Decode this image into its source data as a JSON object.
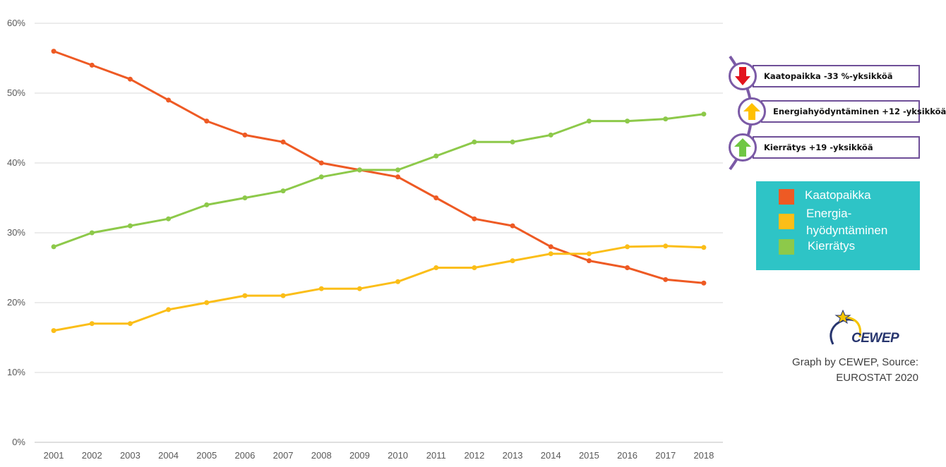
{
  "chart_data": {
    "type": "line",
    "x": [
      "2001",
      "2002",
      "2003",
      "2004",
      "2005",
      "2006",
      "2007",
      "2008",
      "2009",
      "2010",
      "2011",
      "2012",
      "2013",
      "2014",
      "2015",
      "2016",
      "2017",
      "2018"
    ],
    "ylim": [
      0,
      60
    ],
    "yticks": [
      "0%",
      "10%",
      "20%",
      "30%",
      "40%",
      "50%",
      "60%"
    ],
    "ytick_values": [
      0,
      10,
      20,
      30,
      40,
      50,
      60
    ],
    "grid": true,
    "legend_position": "right",
    "series": [
      {
        "name": "Kaatopaikka",
        "color": "#ee5a24",
        "values": [
          56,
          54,
          52,
          49,
          46,
          44,
          43,
          40,
          39,
          38,
          35,
          32,
          31,
          28,
          26,
          25,
          23.3,
          22.8
        ]
      },
      {
        "name": "Energia-hyödyntäminen",
        "color": "#fbbe18",
        "values": [
          16,
          17,
          17,
          19,
          20,
          21,
          21,
          22,
          22,
          23,
          25,
          25,
          26,
          27,
          27,
          28,
          28.1,
          27.9
        ]
      },
      {
        "name": "Kierrätys",
        "color": "#8dc94a",
        "values": [
          28,
          30,
          31,
          32,
          34,
          35,
          36,
          38,
          39,
          39,
          41,
          43,
          43,
          44,
          46,
          46,
          46.3,
          47
        ]
      }
    ]
  },
  "callouts": [
    {
      "text": "Kaatopaikka -33 %-yksikköä",
      "icon": "arrow-down-icon",
      "color": "#e3141e"
    },
    {
      "text": "Energiahyödyntäminen +12 -yksikköä",
      "icon": "arrow-up-icon",
      "color": "#ffc000"
    },
    {
      "text": "Kierrätys +19 -yksikköä",
      "icon": "arrow-up-icon",
      "color": "#70c744"
    }
  ],
  "legend": {
    "background": "#2ec4c6",
    "items": [
      {
        "label": "Kaatopaikka",
        "color": "#ee5a24"
      },
      {
        "label": "Energia-",
        "label2": "hyödyntäminen",
        "color": "#fbbe18"
      },
      {
        "label": "Kierrätys",
        "color": "#8dc94a"
      }
    ]
  },
  "logo": {
    "text": "CEWEP"
  },
  "source": {
    "line1": "Graph by CEWEP, Source:",
    "line2": "EUROSTAT 2020"
  }
}
